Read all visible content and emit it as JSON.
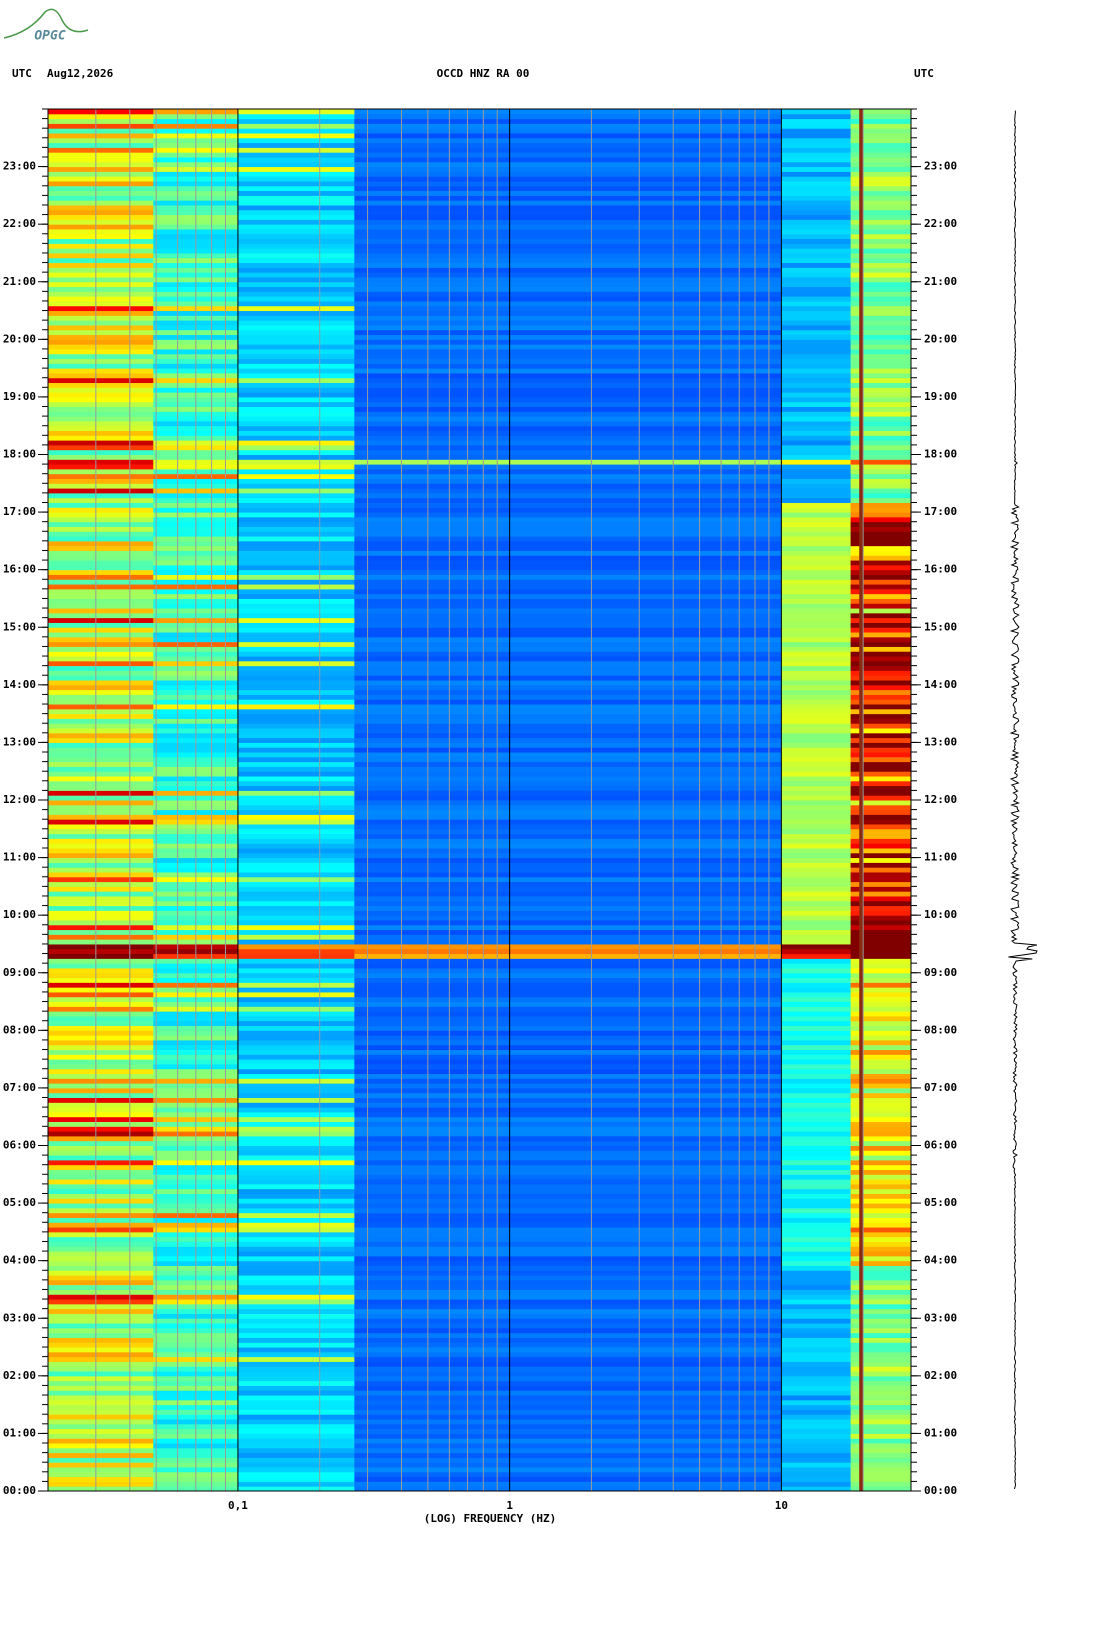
{
  "chart_data": {
    "type": "spectrogram",
    "logo": "OPGC",
    "header_left": "UTC",
    "date": "Aug12,2026",
    "title": "OCCD HNZ RA 00",
    "header_right": "UTC",
    "xlabel": "(LOG) FREQUENCY (HZ)",
    "xscale": "log",
    "xlim": [
      0.02,
      30
    ],
    "xticks": [
      {
        "value": 0.1,
        "label": "0,1"
      },
      1,
      10
    ],
    "x_minor_ticks": [
      0.03,
      0.04,
      0.05,
      0.06,
      0.07,
      0.08,
      0.09,
      0.2,
      0.3,
      0.4,
      0.5,
      0.6,
      0.7,
      0.8,
      0.9,
      2,
      3,
      4,
      5,
      6,
      7,
      8,
      9,
      20
    ],
    "ylim": [
      0,
      24
    ],
    "yticks": [
      {
        "value": 0,
        "label": "00:00"
      },
      {
        "value": 1,
        "label": "01:00"
      },
      {
        "value": 2,
        "label": "02:00"
      },
      {
        "value": 3,
        "label": "03:00"
      },
      {
        "value": 4,
        "label": "04:00"
      },
      {
        "value": 5,
        "label": "05:00"
      },
      {
        "value": 6,
        "label": "06:00"
      },
      {
        "value": 7,
        "label": "07:00"
      },
      {
        "value": 8,
        "label": "08:00"
      },
      {
        "value": 9,
        "label": "09:00"
      },
      {
        "value": 10,
        "label": "10:00"
      },
      {
        "value": 11,
        "label": "11:00"
      },
      {
        "value": 12,
        "label": "12:00"
      },
      {
        "value": 13,
        "label": "13:00"
      },
      {
        "value": 14,
        "label": "14:00"
      },
      {
        "value": 15,
        "label": "15:00"
      },
      {
        "value": 16,
        "label": "16:00"
      },
      {
        "value": 17,
        "label": "17:00"
      },
      {
        "value": 18,
        "label": "18:00"
      },
      {
        "value": 19,
        "label": "19:00"
      },
      {
        "value": 20,
        "label": "20:00"
      },
      {
        "value": 21,
        "label": "21:00"
      },
      {
        "value": 22,
        "label": "22:00"
      },
      {
        "value": 23,
        "label": "23:00"
      }
    ]
  }
}
